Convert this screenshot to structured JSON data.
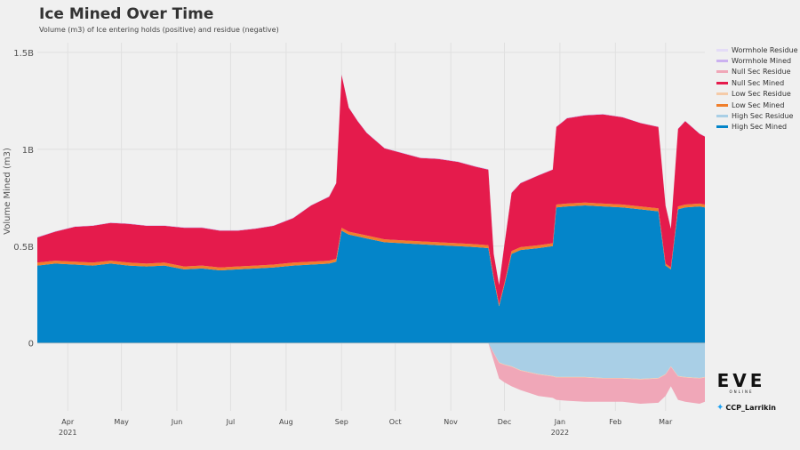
{
  "header": {
    "title": "Ice Mined Over Time",
    "subtitle": "Volume (m3) of Ice entering holds (positive) and residue (negative)"
  },
  "brand": {
    "logo": "EVE",
    "tagline": "ONLINE",
    "twitter": "CCP_Larrikin"
  },
  "legend": [
    {
      "name": "Wormhole Residue",
      "color": "#e4dcf7"
    },
    {
      "name": "Wormhole Mined",
      "color": "#cbb1f0"
    },
    {
      "name": "Null Sec Residue",
      "color": "#f0a7b8"
    },
    {
      "name": "Null Sec Mined",
      "color": "#e51b4c"
    },
    {
      "name": "Low Sec Residue",
      "color": "#f5cba8"
    },
    {
      "name": "Low Sec Mined",
      "color": "#f07f2c"
    },
    {
      "name": "High Sec Residue",
      "color": "#a9cfe6"
    },
    {
      "name": "High Sec Mined",
      "color": "#0485c9"
    }
  ],
  "chart_data": {
    "type": "area",
    "title": "Ice Mined Over Time",
    "subtitle": "Volume (m3) of Ice entering holds (positive) and residue (negative)",
    "xlabel": "",
    "ylabel": "Volume Mined (m3)",
    "ylim": [
      -350000000,
      1550000000
    ],
    "y_ticks": [
      {
        "value": 0,
        "label": "0"
      },
      {
        "value": 500000000,
        "label": "0.5B"
      },
      {
        "value": 1000000000,
        "label": "1B"
      },
      {
        "value": 1500000000,
        "label": "1.5B"
      }
    ],
    "x_ticks": [
      {
        "date": "2021-04-01",
        "label": "Apr",
        "year": "2021"
      },
      {
        "date": "2021-05-01",
        "label": "May",
        "year": ""
      },
      {
        "date": "2021-06-01",
        "label": "Jun",
        "year": ""
      },
      {
        "date": "2021-07-01",
        "label": "Jul",
        "year": ""
      },
      {
        "date": "2021-08-01",
        "label": "Aug",
        "year": ""
      },
      {
        "date": "2021-09-01",
        "label": "Sep",
        "year": ""
      },
      {
        "date": "2021-10-01",
        "label": "Oct",
        "year": ""
      },
      {
        "date": "2021-11-01",
        "label": "Nov",
        "year": ""
      },
      {
        "date": "2021-12-01",
        "label": "Dec",
        "year": ""
      },
      {
        "date": "2022-01-01",
        "label": "Jan",
        "year": "2022"
      },
      {
        "date": "2022-02-01",
        "label": "Feb",
        "year": ""
      },
      {
        "date": "2022-03-01",
        "label": "Mar",
        "year": ""
      }
    ],
    "x_range": [
      "2021-03-15",
      "2022-03-23"
    ],
    "grid": true,
    "legend_position": "right",
    "x": [
      "2021-03-15",
      "2021-03-25",
      "2021-04-05",
      "2021-04-15",
      "2021-04-25",
      "2021-05-05",
      "2021-05-15",
      "2021-05-25",
      "2021-06-05",
      "2021-06-15",
      "2021-06-25",
      "2021-07-05",
      "2021-07-15",
      "2021-07-25",
      "2021-08-05",
      "2021-08-15",
      "2021-08-25",
      "2021-08-29",
      "2021-09-01",
      "2021-09-05",
      "2021-09-10",
      "2021-09-15",
      "2021-09-25",
      "2021-10-05",
      "2021-10-15",
      "2021-10-25",
      "2021-11-05",
      "2021-11-15",
      "2021-11-22",
      "2021-11-25",
      "2021-11-28",
      "2021-12-01",
      "2021-12-05",
      "2021-12-10",
      "2021-12-20",
      "2021-12-28",
      "2021-12-30",
      "2022-01-05",
      "2022-01-15",
      "2022-01-25",
      "2022-02-05",
      "2022-02-15",
      "2022-02-25",
      "2022-03-01",
      "2022-03-04",
      "2022-03-08",
      "2022-03-12",
      "2022-03-20",
      "2022-03-23"
    ],
    "series": [
      {
        "name": "High Sec Mined",
        "color": "#0485c9",
        "values": [
          400000000,
          410000000,
          405000000,
          400000000,
          410000000,
          400000000,
          395000000,
          400000000,
          380000000,
          385000000,
          375000000,
          380000000,
          385000000,
          390000000,
          400000000,
          405000000,
          410000000,
          420000000,
          580000000,
          560000000,
          550000000,
          540000000,
          520000000,
          515000000,
          510000000,
          505000000,
          500000000,
          495000000,
          490000000,
          330000000,
          190000000,
          300000000,
          460000000,
          480000000,
          490000000,
          500000000,
          700000000,
          705000000,
          710000000,
          705000000,
          700000000,
          690000000,
          680000000,
          400000000,
          380000000,
          690000000,
          700000000,
          705000000,
          700000000
        ]
      },
      {
        "name": "High Sec Residue",
        "color": "#a9cfe6",
        "values": [
          0,
          0,
          0,
          0,
          0,
          0,
          0,
          0,
          0,
          0,
          0,
          0,
          0,
          0,
          0,
          0,
          0,
          0,
          0,
          0,
          0,
          0,
          0,
          0,
          0,
          0,
          0,
          0,
          0,
          -50000000,
          -100000000,
          -110000000,
          -120000000,
          -140000000,
          -160000000,
          -170000000,
          -175000000,
          -175000000,
          -175000000,
          -180000000,
          -180000000,
          -185000000,
          -180000000,
          -160000000,
          -120000000,
          -170000000,
          -175000000,
          -180000000,
          -175000000
        ]
      },
      {
        "name": "Low Sec Mined",
        "color": "#f07f2c",
        "values": [
          15000000,
          15000000,
          15000000,
          15000000,
          15000000,
          15000000,
          15000000,
          15000000,
          15000000,
          15000000,
          15000000,
          15000000,
          15000000,
          15000000,
          15000000,
          15000000,
          15000000,
          15000000,
          15000000,
          15000000,
          15000000,
          15000000,
          15000000,
          15000000,
          15000000,
          15000000,
          15000000,
          15000000,
          15000000,
          10000000,
          10000000,
          10000000,
          15000000,
          15000000,
          15000000,
          15000000,
          15000000,
          15000000,
          15000000,
          15000000,
          15000000,
          15000000,
          15000000,
          10000000,
          10000000,
          15000000,
          15000000,
          15000000,
          15000000
        ]
      },
      {
        "name": "Low Sec Residue",
        "color": "#f5cba8",
        "values": [
          0,
          0,
          0,
          0,
          0,
          0,
          0,
          0,
          0,
          0,
          0,
          0,
          0,
          0,
          0,
          0,
          0,
          0,
          0,
          0,
          0,
          0,
          0,
          0,
          0,
          0,
          0,
          0,
          0,
          -2000000,
          -3000000,
          -3000000,
          -3000000,
          -3000000,
          -3000000,
          -3000000,
          -3000000,
          -3000000,
          -3000000,
          -3000000,
          -3000000,
          -3000000,
          -3000000,
          -3000000,
          -3000000,
          -3000000,
          -3000000,
          -3000000,
          -3000000
        ]
      },
      {
        "name": "Null Sec Mined",
        "color": "#e51b4c",
        "values": [
          130000000,
          150000000,
          180000000,
          190000000,
          195000000,
          200000000,
          195000000,
          190000000,
          200000000,
          195000000,
          190000000,
          185000000,
          190000000,
          200000000,
          230000000,
          290000000,
          330000000,
          390000000,
          790000000,
          640000000,
          580000000,
          530000000,
          470000000,
          450000000,
          430000000,
          430000000,
          420000000,
          400000000,
          390000000,
          120000000,
          100000000,
          200000000,
          300000000,
          330000000,
          360000000,
          380000000,
          400000000,
          440000000,
          450000000,
          460000000,
          450000000,
          430000000,
          420000000,
          300000000,
          200000000,
          400000000,
          430000000,
          360000000,
          350000000
        ]
      },
      {
        "name": "Null Sec Residue",
        "color": "#f0a7b8",
        "values": [
          0,
          0,
          0,
          0,
          0,
          0,
          0,
          0,
          0,
          0,
          0,
          0,
          0,
          0,
          0,
          0,
          0,
          0,
          0,
          0,
          0,
          0,
          0,
          0,
          0,
          0,
          0,
          0,
          0,
          -40000000,
          -80000000,
          -90000000,
          -100000000,
          -100000000,
          -110000000,
          -110000000,
          -115000000,
          -120000000,
          -125000000,
          -120000000,
          -120000000,
          -125000000,
          -125000000,
          -110000000,
          -100000000,
          -120000000,
          -125000000,
          -130000000,
          -125000000
        ]
      },
      {
        "name": "Wormhole Mined",
        "color": "#cbb1f0",
        "values": [
          2000000,
          2000000,
          2000000,
          2000000,
          2000000,
          2000000,
          2000000,
          2000000,
          2000000,
          2000000,
          2000000,
          2000000,
          2000000,
          2000000,
          2000000,
          2000000,
          2000000,
          2000000,
          2000000,
          2000000,
          2000000,
          2000000,
          2000000,
          2000000,
          2000000,
          2000000,
          2000000,
          2000000,
          2000000,
          2000000,
          2000000,
          2000000,
          2000000,
          2000000,
          2000000,
          2000000,
          2000000,
          2000000,
          2000000,
          2000000,
          2000000,
          2000000,
          2000000,
          2000000,
          2000000,
          2000000,
          2000000,
          2000000,
          2000000
        ]
      },
      {
        "name": "Wormhole Residue",
        "color": "#e4dcf7",
        "values": [
          0,
          0,
          0,
          0,
          0,
          0,
          0,
          0,
          0,
          0,
          0,
          0,
          0,
          0,
          0,
          0,
          0,
          0,
          0,
          0,
          0,
          0,
          0,
          0,
          0,
          0,
          0,
          0,
          0,
          0,
          0,
          0,
          0,
          0,
          0,
          0,
          0,
          0,
          0,
          0,
          0,
          0,
          0,
          0,
          0,
          0,
          0,
          0,
          0
        ]
      }
    ]
  }
}
